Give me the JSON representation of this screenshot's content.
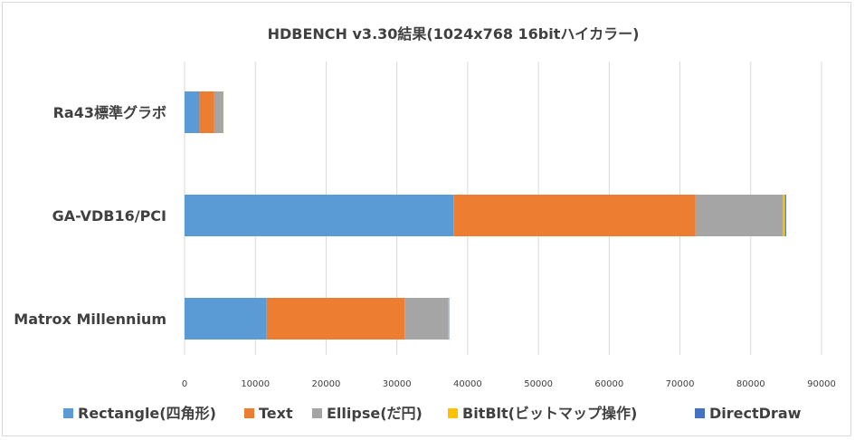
{
  "chart_data": {
    "type": "bar",
    "orientation": "horizontal",
    "stacked": true,
    "title": "HDBENCH v3.30結果(1024x768 16bitハイカラー)",
    "categories": [
      "Ra43標準グラボ",
      "GA-VDB16/PCI",
      "Matrox Millennium"
    ],
    "series": [
      {
        "name": "Rectangle(四角形)",
        "color": "#5b9bd5",
        "values": [
          2100,
          38000,
          11600
        ]
      },
      {
        "name": "Text",
        "color": "#ed7d31",
        "values": [
          2100,
          34200,
          19500
        ]
      },
      {
        "name": "Ellipse(だ円)",
        "color": "#a5a5a5",
        "values": [
          1200,
          12300,
          6200
        ]
      },
      {
        "name": "BitBlt(ビットマップ操作)",
        "color": "#ffc000",
        "values": [
          50,
          350,
          50
        ]
      },
      {
        "name": "DirectDraw",
        "color": "#4472c4",
        "values": [
          50,
          150,
          50
        ]
      }
    ],
    "xlim": [
      0,
      90000
    ],
    "xticks": [
      0,
      10000,
      20000,
      30000,
      40000,
      50000,
      60000,
      70000,
      80000,
      90000
    ],
    "grid": true,
    "legend_position": "bottom"
  }
}
